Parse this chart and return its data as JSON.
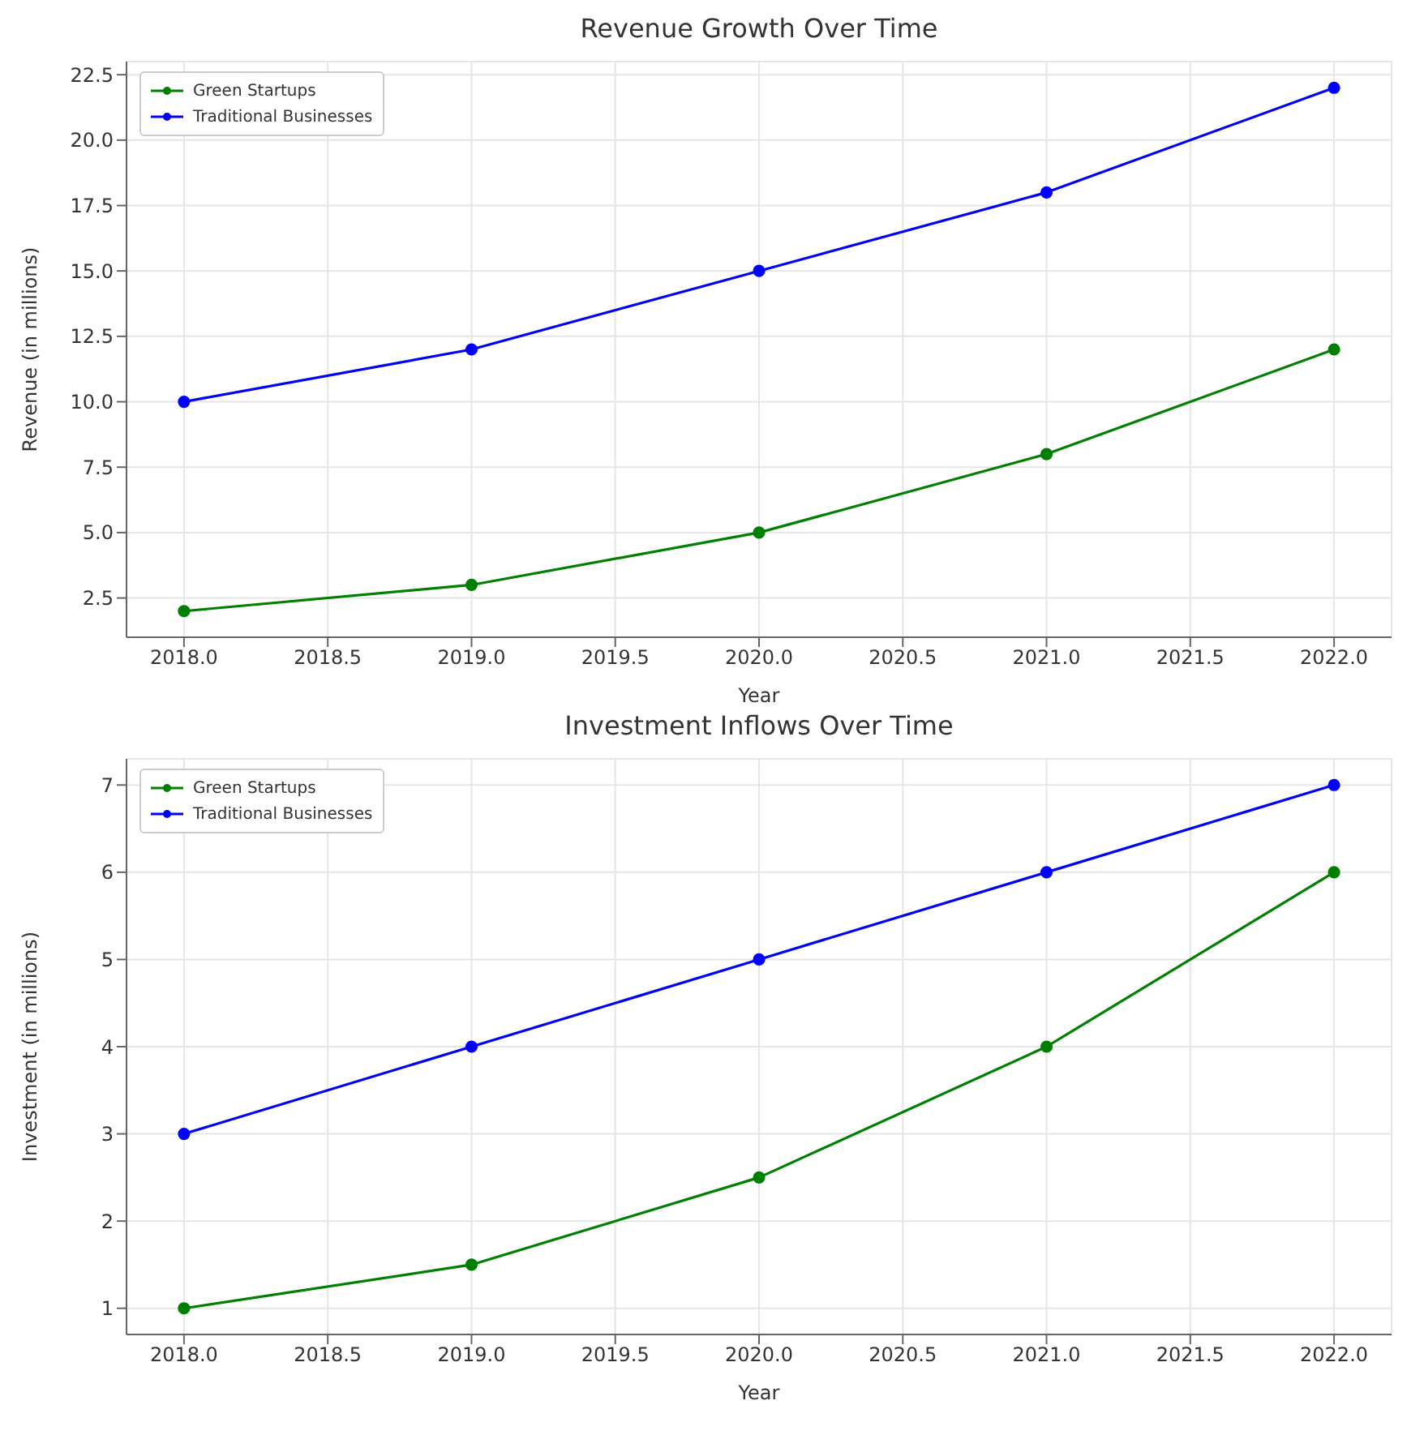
{
  "chart_data": [
    {
      "type": "line",
      "title": "Revenue Growth Over Time",
      "xlabel": "Year",
      "ylabel": "Revenue (in millions)",
      "x": [
        2018,
        2019,
        2020,
        2021,
        2022
      ],
      "series": [
        {
          "name": "Green Startups",
          "color": "#008000",
          "values": [
            2,
            3,
            5,
            8,
            12
          ]
        },
        {
          "name": "Traditional Businesses",
          "color": "#0000ff",
          "values": [
            10,
            12,
            15,
            18,
            22
          ]
        }
      ],
      "xlim": [
        2017.8,
        2022.2
      ],
      "xticks": [
        {
          "value": 2018,
          "label": "2018.0"
        },
        {
          "value": 2018.5,
          "label": "2018.5"
        },
        {
          "value": 2019,
          "label": "2019.0"
        },
        {
          "value": 2019.5,
          "label": "2019.5"
        },
        {
          "value": 2020,
          "label": "2020.0"
        },
        {
          "value": 2020.5,
          "label": "2020.5"
        },
        {
          "value": 2021,
          "label": "2021.0"
        },
        {
          "value": 2021.5,
          "label": "2021.5"
        },
        {
          "value": 2022,
          "label": "2022.0"
        }
      ],
      "ylim": [
        1,
        23
      ],
      "yticks": [
        2.5,
        {
          "value": 5,
          "label": "5.0"
        },
        7.5,
        {
          "value": 10,
          "label": "10.0"
        },
        12.5,
        {
          "value": 15,
          "label": "15.0"
        },
        17.5,
        {
          "value": 20,
          "label": "20.0"
        },
        22.5
      ],
      "grid": true,
      "legend": "top left",
      "marker": "circle",
      "line_style": "solid"
    },
    {
      "type": "line",
      "title": "Investment Inflows Over Time",
      "xlabel": "Year",
      "ylabel": "Investment (in millions)",
      "x": [
        2018,
        2019,
        2020,
        2021,
        2022
      ],
      "series": [
        {
          "name": "Green Startups",
          "color": "#008000",
          "values": [
            1,
            1.5,
            2.5,
            4,
            6
          ]
        },
        {
          "name": "Traditional Businesses",
          "color": "#0000ff",
          "values": [
            3,
            4,
            5,
            6,
            7
          ]
        }
      ],
      "xlim": [
        2017.8,
        2022.2
      ],
      "xticks": [
        {
          "value": 2018,
          "label": "2018.0"
        },
        {
          "value": 2018.5,
          "label": "2018.5"
        },
        {
          "value": 2019,
          "label": "2019.0"
        },
        {
          "value": 2019.5,
          "label": "2019.5"
        },
        {
          "value": 2020,
          "label": "2020.0"
        },
        {
          "value": 2020.5,
          "label": "2020.5"
        },
        {
          "value": 2021,
          "label": "2021.0"
        },
        {
          "value": 2021.5,
          "label": "2021.5"
        },
        {
          "value": 2022,
          "label": "2022.0"
        }
      ],
      "ylim": [
        0.7,
        7.3
      ],
      "yticks": [
        1,
        2,
        3,
        4,
        5,
        6,
        7
      ],
      "grid": true,
      "legend": "top left",
      "marker": "circle",
      "line_style": "solid"
    }
  ]
}
